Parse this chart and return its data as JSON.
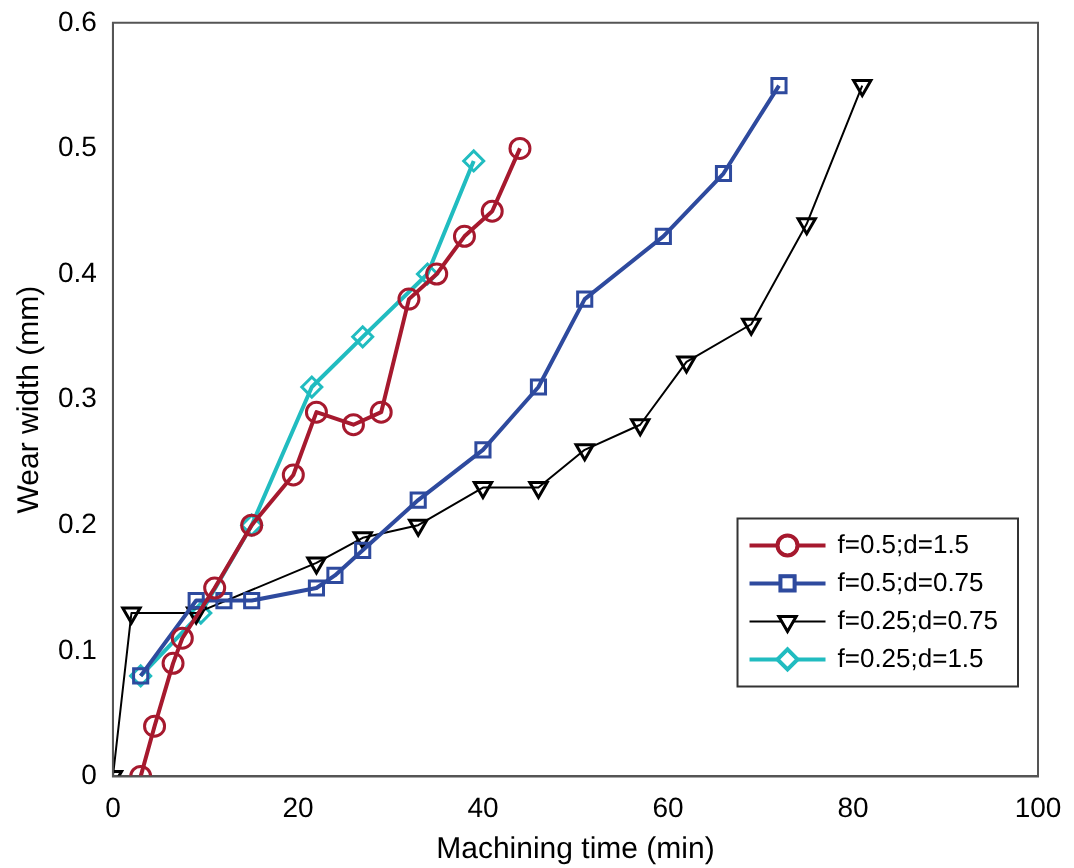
{
  "chart_data": {
    "type": "line",
    "xlabel": "Machining time (min)",
    "ylabel": "Wear width (mm)",
    "xlim": [
      0,
      100
    ],
    "xticks": [
      0,
      20,
      40,
      60,
      80,
      100
    ],
    "ylim": [
      0,
      0.6
    ],
    "yticks": [
      0,
      0.1,
      0.2,
      0.3,
      0.4,
      0.5,
      0.6
    ],
    "grid": false,
    "legend": "bottom right",
    "line_style": "solid",
    "series": [
      {
        "name": "f=0.5;d=1.5",
        "color": "#a6192e",
        "marker": "circle",
        "x": [
          3,
          4.5,
          6.5,
          7.5,
          11,
          15,
          19.5,
          22,
          26,
          29,
          32,
          35,
          38,
          41,
          44
        ],
        "values": [
          0,
          0.04,
          0.09,
          0.11,
          0.15,
          0.2,
          0.24,
          0.29,
          0.28,
          0.29,
          0.38,
          0.4,
          0.43,
          0.45,
          0.5
        ]
      },
      {
        "name": "f=0.5;d=0.75",
        "color": "#2e4a9e",
        "marker": "square",
        "x": [
          3,
          9,
          12,
          15,
          22,
          24,
          27,
          33,
          40,
          46,
          51,
          59.5,
          66,
          72
        ],
        "values": [
          0.08,
          0.14,
          0.14,
          0.14,
          0.15,
          0.16,
          0.18,
          0.22,
          0.26,
          0.31,
          0.38,
          0.43,
          0.48,
          0.55
        ]
      },
      {
        "name": "f=0.25;d=0.75",
        "color": "#000000",
        "marker": "triangle",
        "x": [
          0,
          2,
          9,
          22,
          27,
          33,
          40,
          46,
          51,
          57,
          62,
          69,
          75,
          81
        ],
        "values": [
          0,
          0.13,
          0.13,
          0.17,
          0.19,
          0.2,
          0.23,
          0.23,
          0.26,
          0.28,
          0.33,
          0.36,
          0.44,
          0.55
        ]
      },
      {
        "name": "f=0.25;d=1.5",
        "color": "#21bcc0",
        "marker": "diamond",
        "x": [
          3,
          9.5,
          15,
          21.5,
          27,
          34,
          39
        ],
        "values": [
          0.08,
          0.13,
          0.2,
          0.31,
          0.35,
          0.4,
          0.49
        ]
      }
    ]
  }
}
